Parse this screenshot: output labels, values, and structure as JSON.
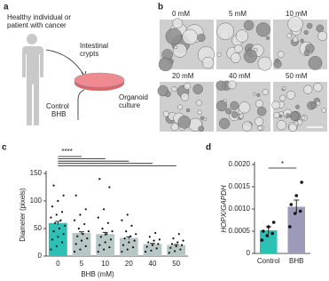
{
  "panel_a": {
    "label": "a",
    "subject": [
      "Healthy individual or",
      "patient with cancer"
    ],
    "crypts": [
      "Intestinal",
      "crypts"
    ],
    "culture": [
      "Organoid",
      "culture"
    ],
    "control": "Control",
    "treatment": "BHB"
  },
  "panel_b": {
    "label": "b",
    "images": [
      "0 mM",
      "5 mM",
      "10 mM",
      "20 mM",
      "40 mM",
      "50 mM"
    ]
  },
  "chart_data": [
    {
      "type": "bar",
      "panel": "c",
      "xlabel": "BHB (mM)",
      "ylabel": "Diameter (pixels)",
      "categories": [
        "0",
        "5",
        "10",
        "20",
        "40",
        "50"
      ],
      "values": [
        60,
        42,
        40,
        33,
        22,
        20
      ],
      "errors": [
        3,
        2,
        3,
        2,
        1,
        1
      ],
      "colors": [
        "#2dc1b5",
        "#b9c6c6",
        "#b9c6c6",
        "#b9c6c6",
        "#b9c6c6",
        "#b9c6c6"
      ],
      "points": [
        [
          12,
          18,
          25,
          30,
          35,
          40,
          45,
          50,
          55,
          60,
          65,
          70,
          75,
          80,
          90,
          100,
          110,
          128
        ],
        [
          8,
          12,
          18,
          22,
          28,
          32,
          36,
          40,
          45,
          50,
          58,
          65,
          75,
          85,
          110
        ],
        [
          8,
          12,
          16,
          20,
          25,
          30,
          35,
          40,
          45,
          50,
          60,
          70,
          85,
          125,
          140
        ],
        [
          8,
          12,
          16,
          20,
          25,
          28,
          32,
          36,
          40,
          45,
          55,
          65,
          75
        ],
        [
          8,
          10,
          14,
          17,
          20,
          22,
          25,
          28,
          30,
          35,
          42
        ],
        [
          6,
          9,
          12,
          15,
          18,
          20,
          22,
          25,
          28,
          32,
          40
        ]
      ],
      "annotation": "****",
      "ylim": [
        0,
        150
      ],
      "yticks": [
        0,
        50,
        100,
        150
      ]
    },
    {
      "type": "bar",
      "panel": "d",
      "ylabel": "HOPX/GAPDH",
      "categories": [
        "Control",
        "BHB"
      ],
      "values": [
        0.00052,
        0.00105
      ],
      "errors": [
        8e-05,
        0.00015
      ],
      "colors": [
        "#2dc1b5",
        "#9c9ab9"
      ],
      "points": [
        [
          0.0003,
          0.0004,
          0.00045,
          0.0005,
          0.0006,
          0.0007
        ],
        [
          0.0006,
          0.0009,
          0.00095,
          0.0011,
          0.0013,
          0.0016
        ]
      ],
      "annotation": "*",
      "ylim": [
        0,
        0.002
      ],
      "yticks": [
        0,
        0.0005,
        {
          "value": 0.001,
          "label": "0.0010"
        },
        {
          "value": 0.0015,
          "label": "0.0015"
        },
        {
          "value": 0.002,
          "label": "0.0020"
        }
      ]
    }
  ]
}
